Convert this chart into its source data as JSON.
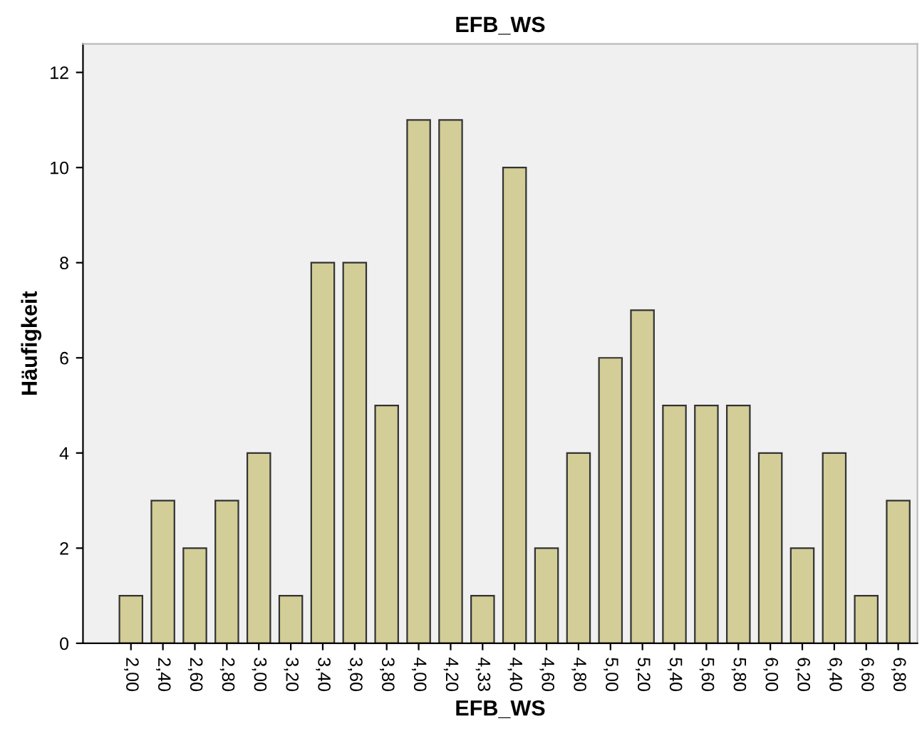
{
  "chart_data": {
    "type": "bar",
    "title": "EFB_WS",
    "xlabel": "EFB_WS",
    "ylabel": "Häufigkeit",
    "categories": [
      "2,00",
      "2,40",
      "2,60",
      "2,80",
      "3,00",
      "3,20",
      "3,40",
      "3,60",
      "3,80",
      "4,00",
      "4,20",
      "4,33",
      "4,40",
      "4,60",
      "4,80",
      "5,00",
      "5,20",
      "5,40",
      "5,60",
      "5,80",
      "6,00",
      "6,20",
      "6,40",
      "6,60",
      "6,80"
    ],
    "values": [
      1,
      3,
      2,
      3,
      4,
      1,
      8,
      8,
      5,
      11,
      11,
      1,
      10,
      2,
      4,
      6,
      7,
      5,
      5,
      5,
      4,
      2,
      4,
      1,
      3
    ],
    "color": "#d3ce97",
    "ylim": [
      0,
      12.6
    ],
    "yticks": [
      0,
      2,
      4,
      6,
      8,
      10,
      12
    ],
    "grid": false,
    "legend": false
  }
}
